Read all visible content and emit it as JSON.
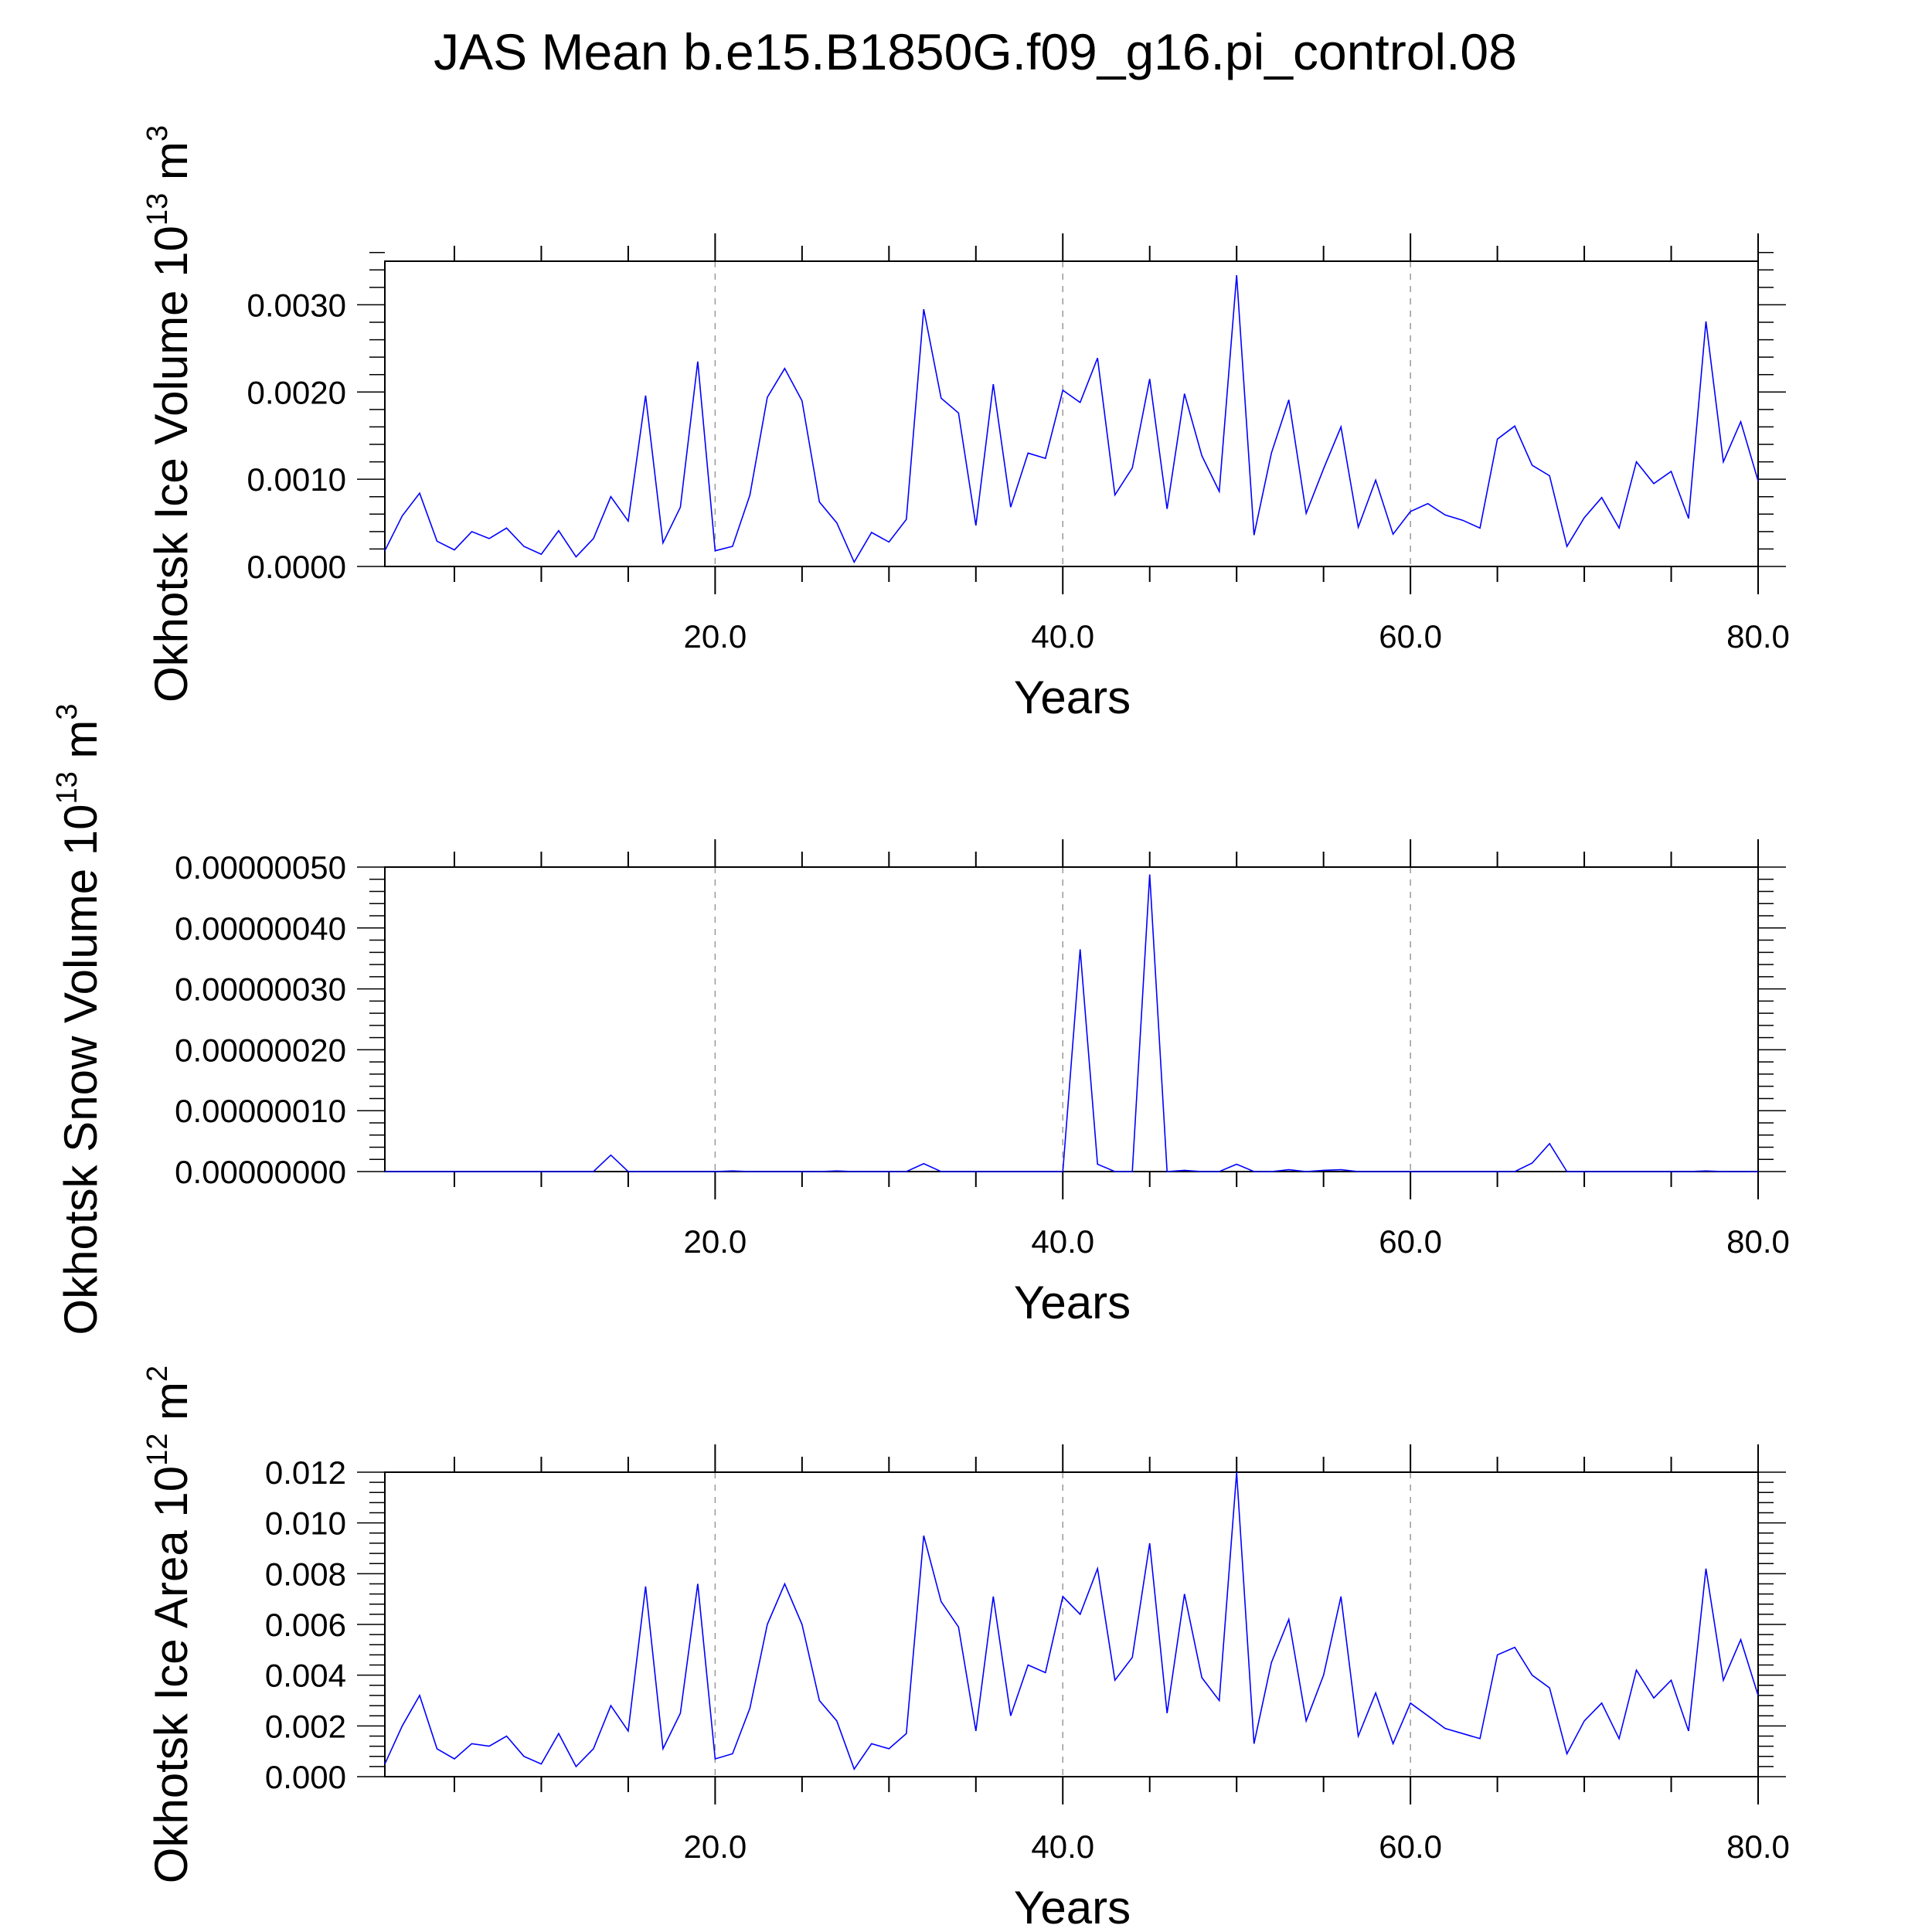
{
  "title": "JAS Mean b.e15.B1850G.f09_g16.pi_control.08",
  "line_color": "#0000ff",
  "chart_data": [
    {
      "type": "line",
      "ylabel": "Okhotsk Ice Volume 10",
      "ylabel_exp": "13",
      "ylabel_unit": "m",
      "ylabel_unit_exp": "3",
      "xlabel": "Years",
      "xlim": [
        1,
        80
      ],
      "ylim": [
        0.0,
        0.0035
      ],
      "grid": "dashed vertical at major ticks",
      "x_ticks": [
        20,
        40,
        60,
        80
      ],
      "x_tick_labels": [
        "20.0",
        "40.0",
        "60.0",
        "80.0"
      ],
      "y_ticks": [
        0.0,
        0.001,
        0.002,
        0.003
      ],
      "y_tick_labels": [
        "0.0000",
        "0.0010",
        "0.0020",
        "0.0030"
      ],
      "x": [
        1,
        2,
        3,
        4,
        5,
        6,
        7,
        8,
        9,
        10,
        11,
        12,
        13,
        14,
        15,
        16,
        17,
        18,
        19,
        20,
        21,
        22,
        23,
        24,
        25,
        26,
        27,
        28,
        29,
        30,
        31,
        32,
        33,
        34,
        35,
        36,
        37,
        38,
        39,
        40,
        41,
        42,
        43,
        44,
        45,
        46,
        47,
        48,
        49,
        50,
        51,
        52,
        53,
        54,
        55,
        56,
        57,
        58,
        59,
        60,
        61,
        62,
        63,
        64,
        65,
        66,
        67,
        68,
        69,
        70,
        71,
        72,
        73,
        74,
        75,
        76,
        77,
        78,
        79,
        80
      ],
      "values": [
        0.00018,
        0.00058,
        0.00084,
        0.00029,
        0.00019,
        0.0004,
        0.00032,
        0.00044,
        0.00023,
        0.00014,
        0.00041,
        0.00011,
        0.00032,
        0.0008,
        0.00052,
        0.00196,
        0.00027,
        0.00068,
        0.00235,
        0.00018,
        0.00023,
        0.00082,
        0.00194,
        0.00227,
        0.0019,
        0.00074,
        0.0005,
        5e-05,
        0.00039,
        0.00028,
        0.00054,
        0.00295,
        0.00193,
        0.00176,
        0.00047,
        0.00209,
        0.00068,
        0.0013,
        0.00124,
        0.00202,
        0.00188,
        0.00239,
        0.00082,
        0.00113,
        0.00215,
        0.00066,
        0.00198,
        0.00127,
        0.00086,
        0.00334,
        0.00036,
        0.0013,
        0.00191,
        0.00061,
        0.00112,
        0.0016,
        0.00045,
        0.00099,
        0.00037,
        0.00063,
        0.00072,
        0.00059,
        0.00053,
        0.00044,
        0.00146,
        0.00161,
        0.00116,
        0.00104,
        0.00023,
        0.00056,
        0.00079,
        0.00044,
        0.0012,
        0.00095,
        0.00109,
        0.00055,
        0.00281,
        0.0012,
        0.00166,
        0.00098
      ]
    },
    {
      "type": "line",
      "ylabel": "Okhotsk Snow Volume 10",
      "ylabel_exp": "13",
      "ylabel_unit": "m",
      "ylabel_unit_exp": "3",
      "xlabel": "Years",
      "xlim": [
        1,
        80
      ],
      "ylim": [
        0.0,
        5e-07
      ],
      "grid": "dashed vertical at major ticks",
      "x_ticks": [
        20,
        40,
        60,
        80
      ],
      "x_tick_labels": [
        "20.0",
        "40.0",
        "60.0",
        "80.0"
      ],
      "y_ticks": [
        0.0,
        1e-07,
        2e-07,
        3e-07,
        4e-07,
        5e-07
      ],
      "y_tick_labels": [
        "0.00000000",
        "0.00000010",
        "0.00000020",
        "0.00000030",
        "0.00000040",
        "0.00000050"
      ],
      "x": [
        1,
        2,
        3,
        4,
        5,
        6,
        7,
        8,
        9,
        10,
        11,
        12,
        13,
        14,
        15,
        16,
        17,
        18,
        19,
        20,
        21,
        22,
        23,
        24,
        25,
        26,
        27,
        28,
        29,
        30,
        31,
        32,
        33,
        34,
        35,
        36,
        37,
        38,
        39,
        40,
        41,
        42,
        43,
        44,
        45,
        46,
        47,
        48,
        49,
        50,
        51,
        52,
        53,
        54,
        55,
        56,
        57,
        58,
        59,
        60,
        61,
        62,
        63,
        64,
        65,
        66,
        67,
        68,
        69,
        70,
        71,
        72,
        73,
        74,
        75,
        76,
        77,
        78,
        79,
        80
      ],
      "values": [
        0,
        0,
        0,
        0,
        0,
        0,
        0,
        0,
        0,
        0,
        0,
        0,
        0,
        2.7e-08,
        0,
        0,
        0,
        0,
        0,
        0,
        1e-09,
        0,
        0,
        0,
        0,
        0,
        1e-09,
        0,
        0,
        0,
        0,
        1.3e-08,
        0,
        0,
        0,
        0,
        0,
        0,
        0,
        0,
        3.65e-07,
        1.2e-08,
        0,
        0,
        4.88e-07,
        0,
        2e-09,
        0,
        0,
        1.2e-08,
        0,
        0,
        3e-09,
        0,
        2e-09,
        3e-09,
        0,
        0,
        0,
        0,
        0,
        0,
        0,
        0,
        0,
        0,
        1.4e-08,
        4.6e-08,
        0,
        0,
        0,
        0,
        0,
        0,
        0,
        0,
        1e-09,
        0,
        0,
        0
      ]
    },
    {
      "type": "line",
      "ylabel": "Okhotsk Ice Area 10",
      "ylabel_exp": "12",
      "ylabel_unit": "m",
      "ylabel_unit_exp": "2",
      "xlabel": "Years",
      "xlim": [
        1,
        80
      ],
      "ylim": [
        0.0,
        0.012
      ],
      "grid": "dashed vertical at major ticks",
      "x_ticks": [
        20,
        40,
        60,
        80
      ],
      "x_tick_labels": [
        "20.0",
        "40.0",
        "60.0",
        "80.0"
      ],
      "y_ticks": [
        0.0,
        0.002,
        0.004,
        0.006,
        0.008,
        0.01,
        0.012
      ],
      "y_tick_labels": [
        "0.000",
        "0.002",
        "0.004",
        "0.006",
        "0.008",
        "0.010",
        "0.012"
      ],
      "x": [
        1,
        2,
        3,
        4,
        5,
        6,
        7,
        8,
        9,
        10,
        11,
        12,
        13,
        14,
        15,
        16,
        17,
        18,
        19,
        20,
        21,
        22,
        23,
        24,
        25,
        26,
        27,
        28,
        29,
        30,
        31,
        32,
        33,
        34,
        35,
        36,
        37,
        38,
        39,
        40,
        41,
        42,
        43,
        44,
        45,
        46,
        47,
        48,
        49,
        50,
        51,
        52,
        53,
        54,
        55,
        56,
        57,
        58,
        59,
        60,
        61,
        62,
        63,
        64,
        65,
        66,
        67,
        68,
        69,
        70,
        71,
        72,
        73,
        74,
        75,
        76,
        77,
        78,
        79,
        80
      ],
      "values": [
        0.0005,
        0.002,
        0.0032,
        0.0011,
        0.0007,
        0.0013,
        0.0012,
        0.0016,
        0.0008,
        0.0005,
        0.0017,
        0.0004,
        0.0011,
        0.0028,
        0.0018,
        0.0075,
        0.0011,
        0.0025,
        0.0076,
        0.0007,
        0.0009,
        0.0027,
        0.006,
        0.0076,
        0.006,
        0.003,
        0.0022,
        0.0003,
        0.0013,
        0.0011,
        0.0017,
        0.0095,
        0.0069,
        0.0059,
        0.0018,
        0.0071,
        0.0024,
        0.0044,
        0.0041,
        0.0071,
        0.0064,
        0.0082,
        0.0038,
        0.0047,
        0.0092,
        0.0025,
        0.0072,
        0.0039,
        0.003,
        0.012,
        0.0013,
        0.0045,
        0.0062,
        0.0022,
        0.004,
        0.0071,
        0.0016,
        0.0033,
        0.0013,
        0.0029,
        0.0024,
        0.0019,
        0.0017,
        0.0015,
        0.0048,
        0.0051,
        0.004,
        0.0035,
        0.0009,
        0.0022,
        0.0029,
        0.0015,
        0.0042,
        0.0031,
        0.0038,
        0.0018,
        0.0082,
        0.0038,
        0.0054,
        0.0032
      ]
    }
  ]
}
